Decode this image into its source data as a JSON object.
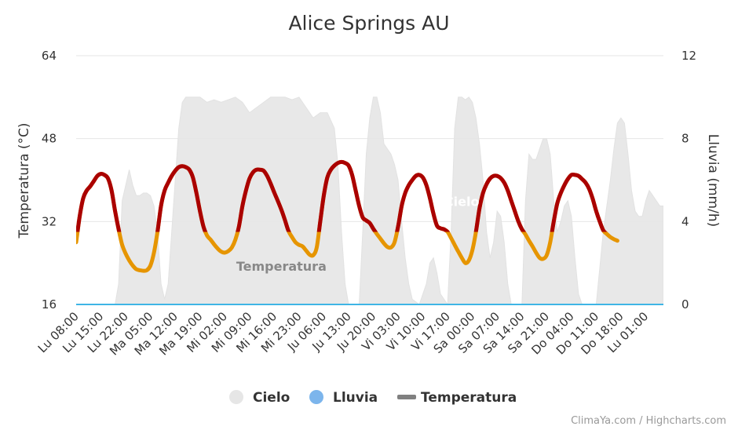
{
  "chart_data": {
    "type": "line",
    "title": "Alice Springs AU",
    "credits": "ClimaYa.com / Highcharts.com",
    "y_left": {
      "label": "Temperatura (°C)",
      "range": [
        16,
        64
      ],
      "ticks": [
        "16",
        "32",
        "48",
        "64"
      ]
    },
    "y_right": {
      "label": "Lluvia (mm/h)",
      "range": [
        0,
        12
      ],
      "ticks": [
        "0",
        "4",
        "8",
        "12"
      ]
    },
    "x_range": [
      0,
      166
    ],
    "x_ticks": [
      {
        "label": "Lu 08:00",
        "x": 0
      },
      {
        "label": "Lu 15:00",
        "x": 7
      },
      {
        "label": "Lu 22:00",
        "x": 14
      },
      {
        "label": "Ma 05:00",
        "x": 21
      },
      {
        "label": "Ma 12:00",
        "x": 28
      },
      {
        "label": "Ma 19:00",
        "x": 35
      },
      {
        "label": "Mi 02:00",
        "x": 42
      },
      {
        "label": "Mi 09:00",
        "x": 49
      },
      {
        "label": "Mi 16:00",
        "x": 56
      },
      {
        "label": "Mi 23:00",
        "x": 63
      },
      {
        "label": "Ju 06:00",
        "x": 70
      },
      {
        "label": "Ju 13:00",
        "x": 77
      },
      {
        "label": "Ju 20:00",
        "x": 84
      },
      {
        "label": "Vi 03:00",
        "x": 91
      },
      {
        "label": "Vi 10:00",
        "x": 98
      },
      {
        "label": "Vi 17:00",
        "x": 105
      },
      {
        "label": "Sa 00:00",
        "x": 112
      },
      {
        "label": "Sa 07:00",
        "x": 119
      },
      {
        "label": "Sa 14:00",
        "x": 126
      },
      {
        "label": "Sa 21:00",
        "x": 133
      },
      {
        "label": "Do 04:00",
        "x": 140
      },
      {
        "label": "Do 11:00",
        "x": 147
      },
      {
        "label": "Do 18:00",
        "x": 154
      },
      {
        "label": "Lu 01:00",
        "x": 161
      }
    ],
    "series": [
      {
        "name": "Cielo",
        "type": "area",
        "axis": "left",
        "color": "#e6e6e6",
        "data": [
          [
            0,
            16
          ],
          [
            11,
            16
          ],
          [
            12,
            20
          ],
          [
            13,
            36
          ],
          [
            14,
            39
          ],
          [
            15,
            42
          ],
          [
            16,
            39
          ],
          [
            17,
            37
          ],
          [
            18,
            37
          ],
          [
            19,
            37.5
          ],
          [
            20,
            37.5
          ],
          [
            21,
            37
          ],
          [
            22,
            35
          ],
          [
            23,
            30
          ],
          [
            24,
            20
          ],
          [
            25,
            17
          ],
          [
            26,
            20
          ],
          [
            27,
            30
          ],
          [
            28,
            40
          ],
          [
            29,
            50
          ],
          [
            30,
            55
          ],
          [
            31,
            56
          ],
          [
            33,
            56
          ],
          [
            35,
            56
          ],
          [
            37,
            55
          ],
          [
            39,
            55.5
          ],
          [
            41,
            55
          ],
          [
            43,
            55.5
          ],
          [
            45,
            56
          ],
          [
            47,
            55
          ],
          [
            49,
            53
          ],
          [
            51,
            54
          ],
          [
            53,
            55
          ],
          [
            55,
            56
          ],
          [
            57,
            56
          ],
          [
            59,
            56
          ],
          [
            61,
            55.5
          ],
          [
            63,
            56
          ],
          [
            65,
            54
          ],
          [
            67,
            52
          ],
          [
            69,
            53
          ],
          [
            71,
            53
          ],
          [
            73,
            50
          ],
          [
            74,
            43
          ],
          [
            75,
            30
          ],
          [
            76,
            20
          ],
          [
            77,
            16
          ],
          [
            80,
            16
          ],
          [
            81,
            30
          ],
          [
            82,
            45
          ],
          [
            83,
            52
          ],
          [
            84,
            56
          ],
          [
            85,
            56
          ],
          [
            86,
            53
          ],
          [
            87,
            47
          ],
          [
            88,
            46
          ],
          [
            89,
            45
          ],
          [
            90,
            43
          ],
          [
            91,
            40
          ],
          [
            92,
            32
          ],
          [
            93,
            25
          ],
          [
            94,
            20
          ],
          [
            95,
            17
          ],
          [
            97,
            16
          ],
          [
            98,
            18
          ],
          [
            99,
            20
          ],
          [
            100,
            24
          ],
          [
            101,
            25
          ],
          [
            102,
            22
          ],
          [
            103,
            18
          ],
          [
            105,
            16
          ],
          [
            106,
            30
          ],
          [
            107,
            50
          ],
          [
            108,
            56
          ],
          [
            109,
            56
          ],
          [
            110,
            55.5
          ],
          [
            111,
            56
          ],
          [
            112,
            55
          ],
          [
            113,
            52
          ],
          [
            114,
            47
          ],
          [
            115,
            40
          ],
          [
            116,
            30
          ],
          [
            117,
            25
          ],
          [
            118,
            28
          ],
          [
            119,
            34
          ],
          [
            120,
            33
          ],
          [
            121,
            28
          ],
          [
            122,
            20
          ],
          [
            123,
            16
          ],
          [
            126,
            16
          ],
          [
            127,
            36
          ],
          [
            128,
            45
          ],
          [
            129,
            44
          ],
          [
            130,
            44
          ],
          [
            131,
            46
          ],
          [
            132,
            48
          ],
          [
            133,
            48
          ],
          [
            134,
            45
          ],
          [
            135,
            36
          ],
          [
            136,
            30
          ],
          [
            137,
            32
          ],
          [
            138,
            35
          ],
          [
            139,
            36
          ],
          [
            140,
            33
          ],
          [
            141,
            25
          ],
          [
            142,
            18
          ],
          [
            143,
            16
          ],
          [
            147,
            16
          ],
          [
            148,
            23
          ],
          [
            149,
            30
          ],
          [
            150,
            35
          ],
          [
            151,
            40
          ],
          [
            152,
            46
          ],
          [
            153,
            51
          ],
          [
            154,
            52
          ],
          [
            155,
            51
          ],
          [
            156,
            45
          ],
          [
            157,
            38
          ],
          [
            158,
            34
          ],
          [
            159,
            33
          ],
          [
            160,
            33
          ],
          [
            161,
            36
          ],
          [
            162,
            38
          ],
          [
            163,
            37
          ],
          [
            164,
            36
          ],
          [
            165,
            35
          ],
          [
            166,
            35
          ],
          [
            166,
            16
          ]
        ]
      },
      {
        "name": "Lluvia",
        "type": "line",
        "axis": "right",
        "color": "#7cb5ec",
        "data": [
          [
            0,
            0
          ],
          [
            166,
            0
          ]
        ]
      },
      {
        "name": "Temperatura",
        "type": "line",
        "axis": "left",
        "color": "#808080",
        "hot_color": "#aa0000",
        "cool_color": "#e69500",
        "threshold": 30,
        "data": [
          [
            0,
            28
          ],
          [
            1,
            33
          ],
          [
            2,
            36.5
          ],
          [
            3,
            38
          ],
          [
            4,
            38.8
          ],
          [
            5,
            39.8
          ],
          [
            6,
            40.8
          ],
          [
            7,
            41.2
          ],
          [
            8,
            41
          ],
          [
            9,
            40.3
          ],
          [
            10,
            38
          ],
          [
            11,
            34
          ],
          [
            12,
            30.5
          ],
          [
            13,
            27.5
          ],
          [
            14,
            25.8
          ],
          [
            15,
            24.5
          ],
          [
            16,
            23.5
          ],
          [
            17,
            22.8
          ],
          [
            18,
            22.6
          ],
          [
            19,
            22.5
          ],
          [
            20,
            22.6
          ],
          [
            21,
            23.5
          ],
          [
            22,
            26
          ],
          [
            23,
            30
          ],
          [
            24,
            35
          ],
          [
            25,
            38
          ],
          [
            26,
            39.5
          ],
          [
            27,
            40.8
          ],
          [
            28,
            41.8
          ],
          [
            29,
            42.5
          ],
          [
            30,
            42.7
          ],
          [
            31,
            42.5
          ],
          [
            32,
            42
          ],
          [
            33,
            40.5
          ],
          [
            34,
            37.5
          ],
          [
            35,
            34
          ],
          [
            36,
            31
          ],
          [
            37,
            29.3
          ],
          [
            38,
            28.5
          ],
          [
            39,
            27.6
          ],
          [
            40,
            26.8
          ],
          [
            41,
            26.2
          ],
          [
            42,
            26
          ],
          [
            43,
            26.3
          ],
          [
            44,
            27
          ],
          [
            45,
            28.5
          ],
          [
            46,
            31
          ],
          [
            47,
            35
          ],
          [
            48,
            38
          ],
          [
            49,
            40.3
          ],
          [
            50,
            41.5
          ],
          [
            51,
            42
          ],
          [
            52,
            42
          ],
          [
            53,
            41.8
          ],
          [
            54,
            40.8
          ],
          [
            55,
            39.3
          ],
          [
            56,
            37.6
          ],
          [
            57,
            36
          ],
          [
            58,
            34.3
          ],
          [
            59,
            32.3
          ],
          [
            60,
            30.2
          ],
          [
            61,
            29
          ],
          [
            62,
            28
          ],
          [
            63,
            27.5
          ],
          [
            64,
            27.2
          ],
          [
            65,
            26.4
          ],
          [
            66,
            25.6
          ],
          [
            67,
            25.5
          ],
          [
            68,
            27
          ],
          [
            69,
            32
          ],
          [
            70,
            37
          ],
          [
            71,
            40.5
          ],
          [
            72,
            42
          ],
          [
            73,
            42.8
          ],
          [
            74,
            43.3
          ],
          [
            75,
            43.5
          ],
          [
            76,
            43.3
          ],
          [
            77,
            42.8
          ],
          [
            78,
            41
          ],
          [
            79,
            38
          ],
          [
            80,
            35
          ],
          [
            81,
            32.8
          ],
          [
            82,
            32.2
          ],
          [
            83,
            31.7
          ],
          [
            84,
            30.6
          ],
          [
            85,
            29.6
          ],
          [
            86,
            28.7
          ],
          [
            87,
            27.8
          ],
          [
            88,
            27.1
          ],
          [
            89,
            27
          ],
          [
            90,
            28
          ],
          [
            91,
            31
          ],
          [
            92,
            35
          ],
          [
            93,
            37.5
          ],
          [
            94,
            39
          ],
          [
            95,
            40
          ],
          [
            96,
            40.8
          ],
          [
            97,
            41
          ],
          [
            98,
            40.5
          ],
          [
            99,
            39
          ],
          [
            100,
            36.5
          ],
          [
            101,
            33.5
          ],
          [
            102,
            31.2
          ],
          [
            103,
            30.7
          ],
          [
            104,
            30.5
          ],
          [
            105,
            30
          ],
          [
            106,
            28.8
          ],
          [
            107,
            27.5
          ],
          [
            108,
            26.2
          ],
          [
            109,
            25
          ],
          [
            110,
            24
          ],
          [
            111,
            24.5
          ],
          [
            112,
            26.5
          ],
          [
            113,
            30
          ],
          [
            114,
            34.5
          ],
          [
            115,
            37.5
          ],
          [
            116,
            39.2
          ],
          [
            117,
            40.3
          ],
          [
            118,
            40.8
          ],
          [
            119,
            40.8
          ],
          [
            120,
            40.4
          ],
          [
            121,
            39.5
          ],
          [
            122,
            38
          ],
          [
            123,
            36
          ],
          [
            124,
            34
          ],
          [
            125,
            32
          ],
          [
            126,
            30.5
          ],
          [
            127,
            29.5
          ],
          [
            128,
            28.3
          ],
          [
            129,
            27.2
          ],
          [
            130,
            26
          ],
          [
            131,
            25
          ],
          [
            132,
            24.8
          ],
          [
            133,
            25.5
          ],
          [
            134,
            28
          ],
          [
            135,
            32
          ],
          [
            136,
            35.5
          ],
          [
            137,
            37.5
          ],
          [
            138,
            39
          ],
          [
            139,
            40.2
          ],
          [
            140,
            41
          ],
          [
            141,
            41
          ],
          [
            142,
            40.8
          ],
          [
            143,
            40.2
          ],
          [
            144,
            39.5
          ],
          [
            145,
            38.3
          ],
          [
            146,
            36.4
          ],
          [
            147,
            34
          ],
          [
            148,
            32
          ],
          [
            149,
            30.3
          ],
          [
            150,
            29.6
          ],
          [
            151,
            29
          ],
          [
            152,
            28.6
          ],
          [
            153,
            28.3
          ]
        ]
      }
    ],
    "series_labels": [
      {
        "text": "Cielo",
        "x": 109,
        "y": 35,
        "color": "#ffffff"
      },
      {
        "text": "Temperatura",
        "x": 58,
        "y": 22.5,
        "color": "#888888"
      }
    ],
    "legend": {
      "position": "bottom-center",
      "items": [
        {
          "label": "Cielo",
          "symbol": "circle",
          "color": "#e6e6e6"
        },
        {
          "label": "Lluvia",
          "symbol": "circle",
          "color": "#7cb5ec"
        },
        {
          "label": "Temperatura",
          "symbol": "line",
          "color": "#808080"
        }
      ]
    },
    "grid": true
  }
}
